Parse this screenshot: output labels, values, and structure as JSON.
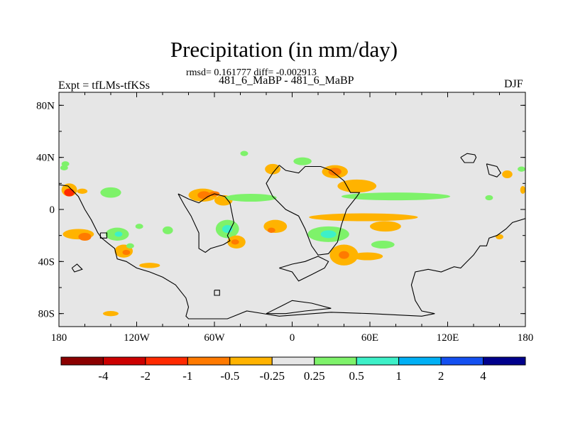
{
  "chart_data": {
    "type": "heatmap",
    "title": "Precipitation (in mm/day)",
    "stats_text": "rmsd= 0.161777 diff= -0.002913",
    "subtitle": "481_6_MaBP - 481_6_MaBP",
    "left_label": "Expt = tfLMs-tfKSs",
    "right_label": "DJF",
    "x_range": [
      -180,
      180
    ],
    "y_range": [
      -90,
      90
    ],
    "x_ticks": [
      {
        "value": -180,
        "label": "180"
      },
      {
        "value": -120,
        "label": "120W"
      },
      {
        "value": -60,
        "label": "60W"
      },
      {
        "value": 0,
        "label": "0"
      },
      {
        "value": 60,
        "label": "60E"
      },
      {
        "value": 120,
        "label": "120E"
      },
      {
        "value": 180,
        "label": "180"
      }
    ],
    "y_ticks": [
      {
        "value": 80,
        "label": "80N"
      },
      {
        "value": 40,
        "label": "40N"
      },
      {
        "value": 0,
        "label": "0"
      },
      {
        "value": -40,
        "label": "40S"
      },
      {
        "value": -80,
        "label": "80S"
      }
    ],
    "background_color": "#e6e6e6",
    "colorbar": {
      "colors": [
        "#8b0000",
        "#cc0000",
        "#ff2a00",
        "#ff7a00",
        "#ffb300",
        "#e6e6e6",
        "#7ef26a",
        "#3df0c8",
        "#00b0f5",
        "#1450f0",
        "#00008c"
      ],
      "labels": [
        "-4",
        "-2",
        "-1",
        "-0.5",
        "-0.25",
        "0.25",
        "0.5",
        "1",
        "2",
        "4"
      ]
    },
    "anomaly_blobs": [
      {
        "lon": -172,
        "lat": 15,
        "rx": 6,
        "ry": 5,
        "color": "#ffb300"
      },
      {
        "lon": -172,
        "lat": 13,
        "rx": 4,
        "ry": 3,
        "color": "#ff2a00"
      },
      {
        "lon": -176,
        "lat": 32,
        "rx": 3,
        "ry": 2,
        "color": "#7ef26a"
      },
      {
        "lon": -165,
        "lat": -19,
        "rx": 12,
        "ry": 4,
        "color": "#ffb300"
      },
      {
        "lon": -160,
        "lat": -21,
        "rx": 5,
        "ry": 3,
        "color": "#ff7a00"
      },
      {
        "lon": -135,
        "lat": -19,
        "rx": 9,
        "ry": 5,
        "color": "#7ef26a"
      },
      {
        "lon": -134,
        "lat": -19,
        "rx": 3,
        "ry": 2,
        "color": "#3df0c8"
      },
      {
        "lon": -130,
        "lat": -32,
        "rx": 7,
        "ry": 5,
        "color": "#ffb300"
      },
      {
        "lon": -128,
        "lat": -33,
        "rx": 3,
        "ry": 2,
        "color": "#ff7a00"
      },
      {
        "lon": -140,
        "lat": 13,
        "rx": 8,
        "ry": 4,
        "color": "#7ef26a"
      },
      {
        "lon": -96,
        "lat": -16,
        "rx": 4,
        "ry": 3,
        "color": "#7ef26a"
      },
      {
        "lon": -140,
        "lat": -80,
        "rx": 6,
        "ry": 2,
        "color": "#ffb300"
      },
      {
        "lon": -110,
        "lat": -43,
        "rx": 8,
        "ry": 2,
        "color": "#ffb300"
      },
      {
        "lon": -69,
        "lat": 11,
        "rx": 11,
        "ry": 5,
        "color": "#ffb300"
      },
      {
        "lon": -68,
        "lat": 11,
        "rx": 5,
        "ry": 3,
        "color": "#ff7a00"
      },
      {
        "lon": -53,
        "lat": 7,
        "rx": 7,
        "ry": 4,
        "color": "#ffb300"
      },
      {
        "lon": -50,
        "lat": -15,
        "rx": 9,
        "ry": 7,
        "color": "#7ef26a"
      },
      {
        "lon": -50,
        "lat": -15,
        "rx": 4,
        "ry": 3,
        "color": "#3df0c8"
      },
      {
        "lon": -43,
        "lat": -25,
        "rx": 7,
        "ry": 5,
        "color": "#ffb300"
      },
      {
        "lon": -44,
        "lat": -25,
        "rx": 3,
        "ry": 2,
        "color": "#ff7a00"
      },
      {
        "lon": -32,
        "lat": 9,
        "rx": 20,
        "ry": 3,
        "color": "#7ef26a"
      },
      {
        "lon": -37,
        "lat": 43,
        "rx": 3,
        "ry": 2,
        "color": "#7ef26a"
      },
      {
        "lon": -15,
        "lat": 31,
        "rx": 6,
        "ry": 4,
        "color": "#ffb300"
      },
      {
        "lon": -13,
        "lat": -13,
        "rx": 9,
        "ry": 5,
        "color": "#ffb300"
      },
      {
        "lon": -16,
        "lat": -16,
        "rx": 3,
        "ry": 2,
        "color": "#ff7a00"
      },
      {
        "lon": 8,
        "lat": 37,
        "rx": 7,
        "ry": 3,
        "color": "#7ef26a"
      },
      {
        "lon": 33,
        "lat": 29,
        "rx": 10,
        "ry": 5,
        "color": "#ffb300"
      },
      {
        "lon": 33,
        "lat": 29,
        "rx": 5,
        "ry": 3,
        "color": "#ff7a00"
      },
      {
        "lon": 50,
        "lat": 18,
        "rx": 15,
        "ry": 5,
        "color": "#ffb300"
      },
      {
        "lon": 80,
        "lat": 10,
        "rx": 42,
        "ry": 3,
        "color": "#7ef26a"
      },
      {
        "lon": 55,
        "lat": -6,
        "rx": 42,
        "ry": 3,
        "color": "#ffb300"
      },
      {
        "lon": 28,
        "lat": -19,
        "rx": 16,
        "ry": 6,
        "color": "#7ef26a"
      },
      {
        "lon": 28,
        "lat": -19,
        "rx": 6,
        "ry": 3,
        "color": "#3df0c8"
      },
      {
        "lon": 40,
        "lat": -35,
        "rx": 11,
        "ry": 8,
        "color": "#ffb300"
      },
      {
        "lon": 40,
        "lat": -35,
        "rx": 4,
        "ry": 3,
        "color": "#ff7a00"
      },
      {
        "lon": 72,
        "lat": -13,
        "rx": 12,
        "ry": 4,
        "color": "#ffb300"
      },
      {
        "lon": 70,
        "lat": -27,
        "rx": 9,
        "ry": 3,
        "color": "#7ef26a"
      },
      {
        "lon": 58,
        "lat": -36,
        "rx": 12,
        "ry": 3,
        "color": "#ffb300"
      },
      {
        "lon": 152,
        "lat": 9,
        "rx": 3,
        "ry": 2,
        "color": "#7ef26a"
      },
      {
        "lon": 166,
        "lat": 27,
        "rx": 4,
        "ry": 3,
        "color": "#ffb300"
      },
      {
        "lon": 177,
        "lat": 31,
        "rx": 3,
        "ry": 2,
        "color": "#7ef26a"
      },
      {
        "lon": 178,
        "lat": 15,
        "rx": 2,
        "ry": 3,
        "color": "#ffb300"
      },
      {
        "lon": -175,
        "lat": 35,
        "rx": 3,
        "ry": 2,
        "color": "#7ef26a"
      },
      {
        "lon": -162,
        "lat": 14,
        "rx": 4,
        "ry": 2,
        "color": "#ffb300"
      },
      {
        "lon": -60,
        "lat": 12,
        "rx": 4,
        "ry": 2,
        "color": "#ff7a00"
      },
      {
        "lon": -118,
        "lat": -13,
        "rx": 3,
        "ry": 2,
        "color": "#7ef26a"
      },
      {
        "lon": -125,
        "lat": -28,
        "rx": 3,
        "ry": 2,
        "color": "#7ef26a"
      },
      {
        "lon": 160,
        "lat": -21,
        "rx": 3,
        "ry": 2,
        "color": "#ffb300"
      }
    ],
    "coastlines": [
      [
        [
          -180,
          19
        ],
        [
          -173,
          18
        ],
        [
          -165,
          10
        ],
        [
          -160,
          0
        ],
        [
          -155,
          -8
        ],
        [
          -150,
          -18
        ],
        [
          -147,
          -22
        ],
        [
          -142,
          -26
        ],
        [
          -137,
          -30
        ],
        [
          -135,
          -38
        ],
        [
          -128,
          -40
        ],
        [
          -120,
          -45
        ],
        [
          -110,
          -48
        ],
        [
          -100,
          -52
        ],
        [
          -90,
          -58
        ],
        [
          -82,
          -68
        ],
        [
          -80,
          -75
        ],
        [
          -82,
          -82
        ],
        [
          -80,
          -84
        ],
        [
          -50,
          -84
        ],
        [
          -35,
          -78
        ],
        [
          -10,
          -82
        ],
        [
          30,
          -79
        ],
        [
          60,
          -80
        ],
        [
          100,
          -82
        ],
        [
          110,
          -80
        ],
        [
          100,
          -78
        ],
        [
          95,
          -70
        ],
        [
          92,
          -58
        ],
        [
          95,
          -48
        ],
        [
          105,
          -46
        ],
        [
          115,
          -48
        ],
        [
          125,
          -44
        ],
        [
          130,
          -45
        ],
        [
          135,
          -40
        ],
        [
          140,
          -35
        ],
        [
          145,
          -28
        ],
        [
          150,
          -28
        ],
        [
          152,
          -22
        ],
        [
          158,
          -20
        ],
        [
          165,
          -15
        ],
        [
          170,
          -10
        ],
        [
          180,
          -7
        ]
      ],
      [
        [
          -88,
          12
        ],
        [
          -83,
          3
        ],
        [
          -78,
          -5
        ],
        [
          -72,
          -18
        ],
        [
          -72,
          -30
        ],
        [
          -67,
          -33
        ],
        [
          -63,
          -30
        ],
        [
          -53,
          -27
        ],
        [
          -48,
          -24
        ],
        [
          -50,
          -20
        ],
        [
          -45,
          -10
        ],
        [
          -47,
          0
        ],
        [
          -48,
          5
        ],
        [
          -52,
          10
        ],
        [
          -60,
          12
        ],
        [
          -65,
          10
        ],
        [
          -72,
          5
        ],
        [
          -80,
          8
        ],
        [
          -88,
          12
        ]
      ],
      [
        [
          -10,
          34
        ],
        [
          -5,
          30
        ],
        [
          5,
          28
        ],
        [
          10,
          33
        ],
        [
          22,
          33
        ],
        [
          30,
          30
        ],
        [
          35,
          26
        ],
        [
          40,
          22
        ],
        [
          45,
          13
        ],
        [
          52,
          13
        ],
        [
          50,
          10
        ],
        [
          42,
          0
        ],
        [
          38,
          -12
        ],
        [
          35,
          -25
        ],
        [
          28,
          -34
        ],
        [
          20,
          -35
        ],
        [
          15,
          -28
        ],
        [
          10,
          -15
        ],
        [
          5,
          -5
        ],
        [
          -5,
          0
        ],
        [
          -15,
          10
        ],
        [
          -20,
          20
        ],
        [
          -15,
          28
        ],
        [
          -10,
          34
        ]
      ],
      [
        [
          -10,
          -45
        ],
        [
          0,
          -48
        ],
        [
          5,
          -55
        ],
        [
          15,
          -50
        ],
        [
          25,
          -45
        ],
        [
          28,
          -40
        ],
        [
          20,
          -36
        ],
        [
          10,
          -40
        ],
        [
          0,
          -42
        ],
        [
          -10,
          -45
        ]
      ],
      [
        [
          -8,
          -74
        ],
        [
          0,
          -70
        ],
        [
          15,
          -72
        ],
        [
          30,
          -76
        ],
        [
          10,
          -78
        ],
        [
          -5,
          -80
        ],
        [
          -20,
          -80
        ],
        [
          -8,
          -74
        ]
      ],
      [
        [
          -170,
          -45
        ],
        [
          -166,
          -42
        ],
        [
          -162,
          -46
        ],
        [
          -168,
          -48
        ],
        [
          -170,
          -45
        ]
      ],
      [
        [
          130,
          40
        ],
        [
          135,
          43
        ],
        [
          141,
          42
        ],
        [
          142,
          40
        ],
        [
          140,
          36
        ],
        [
          133,
          36
        ],
        [
          130,
          40
        ]
      ],
      [
        [
          150,
          35
        ],
        [
          158,
          33
        ],
        [
          161,
          28
        ],
        [
          158,
          25
        ],
        [
          152,
          27
        ],
        [
          150,
          35
        ]
      ],
      [
        [
          -148,
          -18
        ],
        [
          -143,
          -18
        ],
        [
          -143,
          -22
        ],
        [
          -148,
          -22
        ],
        [
          -148,
          -18
        ]
      ],
      [
        [
          -60,
          -62
        ],
        [
          -56,
          -62
        ],
        [
          -56,
          -66
        ],
        [
          -60,
          -66
        ],
        [
          -60,
          -62
        ]
      ]
    ]
  }
}
